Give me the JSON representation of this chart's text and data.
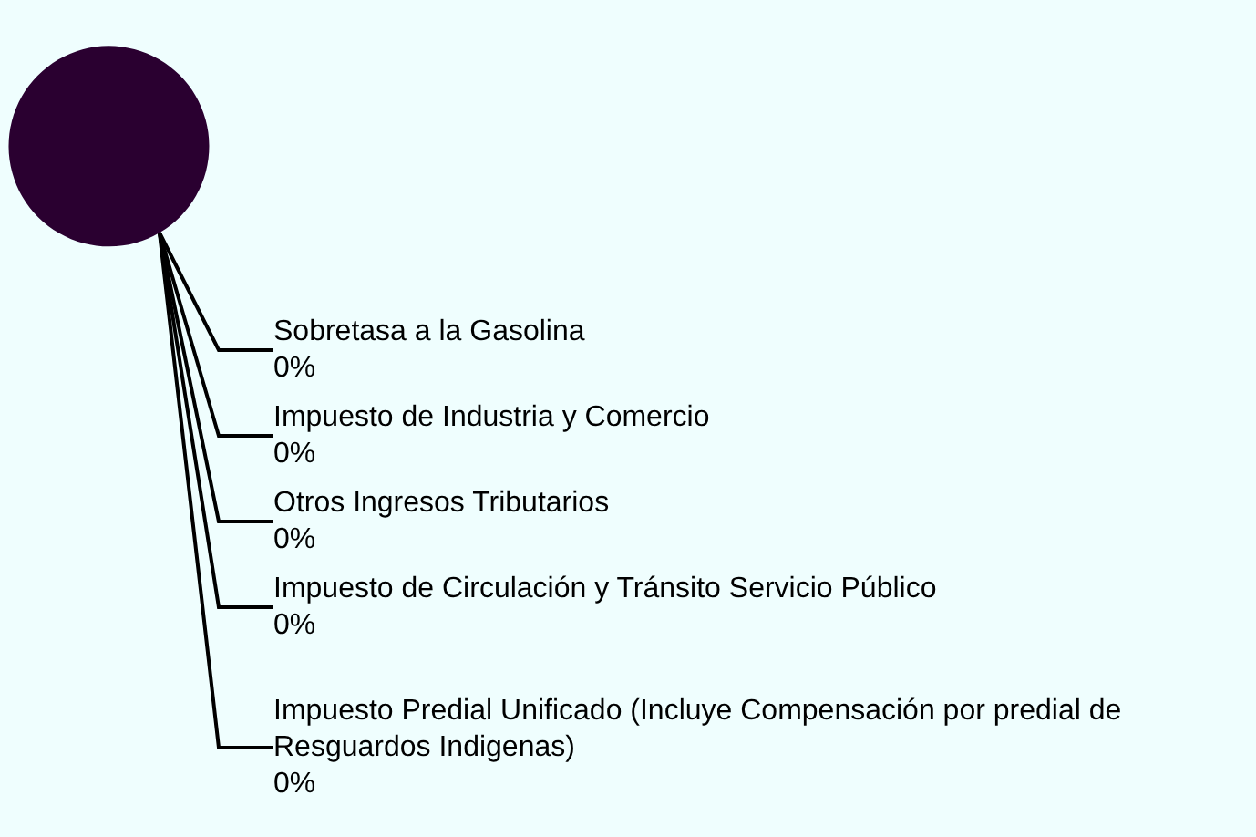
{
  "chart_data": {
    "type": "pie",
    "categories": [
      null,
      "Sobretasa a la Gasolina",
      "Impuesto de Industria y Comercio",
      "Otros Ingresos Tributarios",
      "Impuesto de Circulación y Tránsito Servicio Público",
      "Impuesto Predial Unificado (Incluye Compensación por predial de Resguardos Indigenas)"
    ],
    "values": [
      100,
      0,
      0,
      0,
      0,
      0
    ],
    "colors": [
      "#2a0030",
      "#9999ff",
      "#993366",
      "#ffffcc",
      "#ccffff",
      "#660066"
    ],
    "value_labels": [
      null,
      "0%",
      "0%",
      "0%",
      "0%",
      "0%"
    ]
  }
}
